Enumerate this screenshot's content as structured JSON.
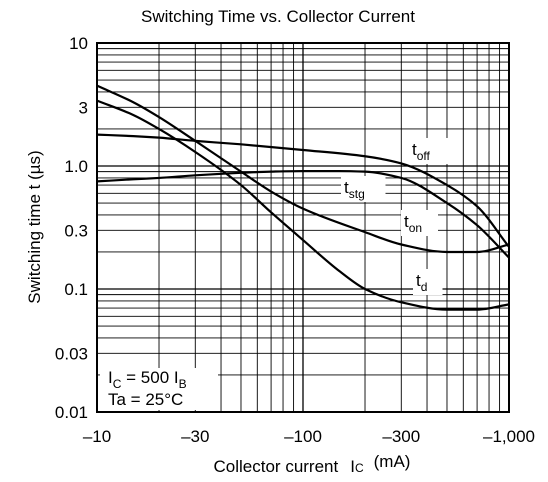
{
  "chart_data": {
    "type": "line",
    "title": "Switching Time vs. Collector Current",
    "xlabel": "Collector current",
    "xlabel_symbol": "I",
    "xlabel_symbol_sub": "C",
    "xlabel_unit": "(mA)",
    "ylabel": "Switching time  t  (µs)",
    "x_scale": "log",
    "y_scale": "log",
    "xlim": [
      10,
      1000
    ],
    "ylim": [
      0.01,
      10
    ],
    "x_direction_note": "magnitude; tick labels are negative currents",
    "x_ticks": [
      10,
      30,
      100,
      300,
      1000
    ],
    "x_tick_labels": [
      "–10",
      "–30",
      "–100",
      "–300",
      "–1,000"
    ],
    "y_ticks": [
      0.01,
      0.03,
      0.1,
      0.3,
      1.0,
      3,
      10
    ],
    "y_tick_labels": [
      "0.01",
      "0.03",
      "0.1",
      "0.3",
      "1.0",
      "3",
      "10"
    ],
    "grid": true,
    "series": [
      {
        "name": "t",
        "name_sub": "off",
        "x": [
          10,
          15,
          20,
          30,
          50,
          100,
          200,
          300,
          500,
          700,
          1000
        ],
        "y": [
          1.8,
          1.75,
          1.7,
          1.6,
          1.5,
          1.35,
          1.2,
          1.05,
          0.7,
          0.47,
          0.22
        ]
      },
      {
        "name": "t",
        "name_sub": "stg",
        "x": [
          10,
          15,
          20,
          30,
          50,
          70,
          100,
          150,
          200,
          300,
          500,
          700,
          1000
        ],
        "y": [
          0.75,
          0.78,
          0.8,
          0.84,
          0.88,
          0.9,
          0.91,
          0.91,
          0.9,
          0.8,
          0.5,
          0.33,
          0.18
        ]
      },
      {
        "name": "t",
        "name_sub": "on",
        "x": [
          10,
          15,
          20,
          30,
          50,
          70,
          100,
          200,
          300,
          500,
          700,
          1000
        ],
        "y": [
          4.5,
          3.3,
          2.5,
          1.6,
          0.9,
          0.62,
          0.45,
          0.29,
          0.23,
          0.2,
          0.2,
          0.23
        ]
      },
      {
        "name": "t",
        "name_sub": "d",
        "x": [
          10,
          15,
          20,
          30,
          50,
          70,
          100,
          150,
          200,
          300,
          500,
          700,
          1000
        ],
        "y": [
          3.4,
          2.6,
          2.0,
          1.3,
          0.7,
          0.42,
          0.25,
          0.14,
          0.1,
          0.078,
          0.068,
          0.068,
          0.075
        ]
      }
    ],
    "annotation": {
      "line1_symbol": "I",
      "line1_sub": "C",
      "line1_middle": " = 500 I",
      "line1_sub2": "B",
      "line2": "Ta = 25°C"
    }
  }
}
